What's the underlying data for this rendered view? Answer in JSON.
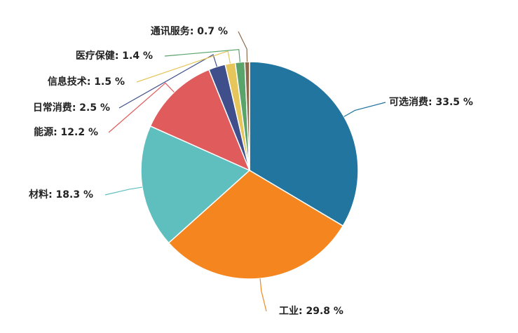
{
  "chart_data": {
    "type": "pie",
    "categories": [
      "可选消费",
      "工业",
      "材料",
      "能源",
      "日常消费",
      "信息技术",
      "医疗保健",
      "通讯服务"
    ],
    "values": [
      33.5,
      29.8,
      18.3,
      12.2,
      2.5,
      1.5,
      1.4,
      0.7
    ],
    "value_labels": [
      ": 33.5 %",
      ": 29.8 %",
      ": 18.3 %",
      ": 12.2 %",
      ": 2.5 %",
      ": 1.5 %",
      ": 1.4 %",
      ": 0.7 %"
    ],
    "colors": [
      "#21759f",
      "#f5861f",
      "#5fbfbf",
      "#e05c5c",
      "#3e4f8c",
      "#e6c55a",
      "#5aa36b",
      "#8b6a4e"
    ]
  }
}
